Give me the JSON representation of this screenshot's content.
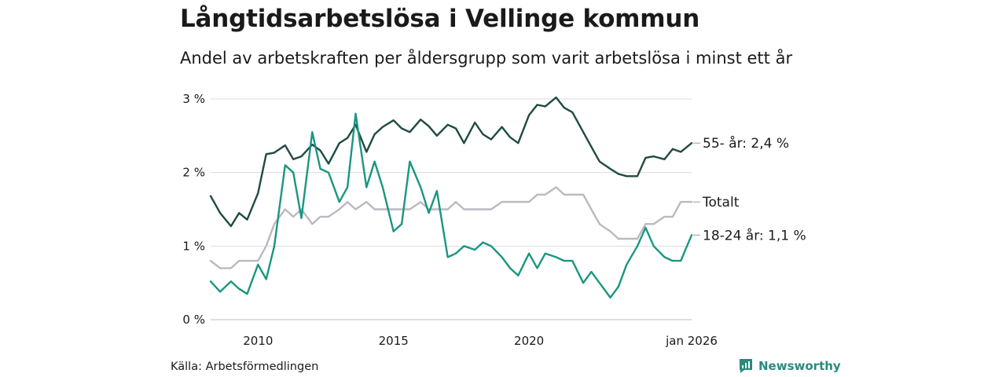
{
  "chart_data": {
    "type": "line",
    "title": "Långtidsarbetslösa i Vellinge kommun",
    "subtitle": "Andel av arbetskraften per åldersgrupp som varit arbetslösa i minst ett år",
    "xlabel": "",
    "ylabel": "",
    "xlim": [
      2008.25,
      2026.0
    ],
    "ylim": [
      0,
      3
    ],
    "y_ticks": [
      0,
      1,
      2,
      3
    ],
    "y_tick_labels": [
      "0 %",
      "1 %",
      "2 %",
      "3 %"
    ],
    "x_ticks": [
      2010,
      2015,
      2020,
      2026
    ],
    "x_tick_labels": [
      "2010",
      "2015",
      "2020",
      "jan 2026"
    ],
    "grid": true,
    "series": [
      {
        "name": "55- år",
        "end_label": "55- år: 2,4 %",
        "color": "#1f4a44",
        "x": [
          2008.25,
          2008.6,
          2009.0,
          2009.3,
          2009.6,
          2010.0,
          2010.3,
          2010.6,
          2011.0,
          2011.3,
          2011.6,
          2012.0,
          2012.3,
          2012.6,
          2013.0,
          2013.3,
          2013.6,
          2014.0,
          2014.3,
          2014.6,
          2015.0,
          2015.3,
          2015.6,
          2016.0,
          2016.3,
          2016.6,
          2017.0,
          2017.3,
          2017.6,
          2018.0,
          2018.3,
          2018.6,
          2019.0,
          2019.3,
          2019.6,
          2020.0,
          2020.3,
          2020.6,
          2021.0,
          2021.3,
          2021.6,
          2022.0,
          2022.3,
          2022.6,
          2023.0,
          2023.3,
          2023.6,
          2024.0,
          2024.3,
          2024.6,
          2025.0,
          2025.3,
          2025.6,
          2026.0
        ],
        "values": [
          1.68,
          1.45,
          1.27,
          1.45,
          1.36,
          1.72,
          2.25,
          2.27,
          2.37,
          2.18,
          2.22,
          2.38,
          2.3,
          2.12,
          2.4,
          2.47,
          2.65,
          2.28,
          2.52,
          2.62,
          2.71,
          2.6,
          2.55,
          2.72,
          2.63,
          2.5,
          2.65,
          2.6,
          2.4,
          2.68,
          2.52,
          2.45,
          2.62,
          2.48,
          2.4,
          2.78,
          2.92,
          2.9,
          3.02,
          2.88,
          2.82,
          2.55,
          2.35,
          2.15,
          2.05,
          1.98,
          1.95,
          1.95,
          2.2,
          2.22,
          2.18,
          2.32,
          2.28,
          2.4
        ]
      },
      {
        "name": "Totalt",
        "end_label": "Totalt",
        "color": "#bcb8c3",
        "x": [
          2008.25,
          2008.6,
          2009.0,
          2009.3,
          2009.6,
          2010.0,
          2010.3,
          2010.6,
          2011.0,
          2011.3,
          2011.6,
          2012.0,
          2012.3,
          2012.6,
          2013.0,
          2013.3,
          2013.6,
          2014.0,
          2014.3,
          2014.6,
          2015.0,
          2015.3,
          2015.6,
          2016.0,
          2016.3,
          2016.6,
          2017.0,
          2017.3,
          2017.6,
          2018.0,
          2018.3,
          2018.6,
          2019.0,
          2019.3,
          2019.6,
          2020.0,
          2020.3,
          2020.6,
          2021.0,
          2021.3,
          2021.6,
          2022.0,
          2022.3,
          2022.6,
          2023.0,
          2023.3,
          2023.6,
          2024.0,
          2024.3,
          2024.6,
          2025.0,
          2025.3,
          2025.6,
          2026.0
        ],
        "values": [
          0.8,
          0.7,
          0.7,
          0.8,
          0.8,
          0.8,
          1.0,
          1.3,
          1.5,
          1.4,
          1.5,
          1.3,
          1.4,
          1.4,
          1.5,
          1.6,
          1.5,
          1.6,
          1.5,
          1.5,
          1.5,
          1.5,
          1.5,
          1.6,
          1.5,
          1.5,
          1.5,
          1.6,
          1.5,
          1.5,
          1.5,
          1.5,
          1.6,
          1.6,
          1.6,
          1.6,
          1.7,
          1.7,
          1.8,
          1.7,
          1.7,
          1.7,
          1.5,
          1.3,
          1.2,
          1.1,
          1.1,
          1.1,
          1.3,
          1.3,
          1.4,
          1.4,
          1.6,
          1.6
        ]
      },
      {
        "name": "18-24 år",
        "end_label": "18-24 år: 1,1 %",
        "color": "#1a9681",
        "x": [
          2008.25,
          2008.6,
          2009.0,
          2009.3,
          2009.6,
          2010.0,
          2010.3,
          2010.6,
          2011.0,
          2011.3,
          2011.6,
          2012.0,
          2012.3,
          2012.6,
          2013.0,
          2013.3,
          2013.6,
          2014.0,
          2014.3,
          2014.6,
          2015.0,
          2015.3,
          2015.6,
          2016.0,
          2016.3,
          2016.6,
          2017.0,
          2017.3,
          2017.6,
          2018.0,
          2018.3,
          2018.6,
          2019.0,
          2019.3,
          2019.6,
          2020.0,
          2020.3,
          2020.6,
          2021.0,
          2021.3,
          2021.6,
          2022.0,
          2022.3,
          2022.6,
          2023.0,
          2023.3,
          2023.6,
          2024.0,
          2024.3,
          2024.6,
          2025.0,
          2025.3,
          2025.6,
          2026.0
        ],
        "values": [
          0.52,
          0.38,
          0.52,
          0.42,
          0.35,
          0.75,
          0.55,
          1.0,
          2.1,
          2.0,
          1.38,
          2.55,
          2.05,
          2.0,
          1.6,
          1.8,
          2.8,
          1.8,
          2.15,
          1.8,
          1.2,
          1.3,
          2.15,
          1.8,
          1.45,
          1.75,
          0.85,
          0.9,
          1.0,
          0.95,
          1.05,
          1.0,
          0.85,
          0.7,
          0.6,
          0.9,
          0.7,
          0.9,
          0.85,
          0.8,
          0.8,
          0.5,
          0.65,
          0.5,
          0.3,
          0.45,
          0.75,
          1.0,
          1.25,
          1.0,
          0.85,
          0.8,
          0.8,
          1.15
        ]
      }
    ]
  },
  "source": "Källa: Arbetsförmedlingen",
  "brand": {
    "name": "Newsworthy",
    "icon": "newsworthy-logo-icon",
    "color": "#2a8a7c"
  }
}
